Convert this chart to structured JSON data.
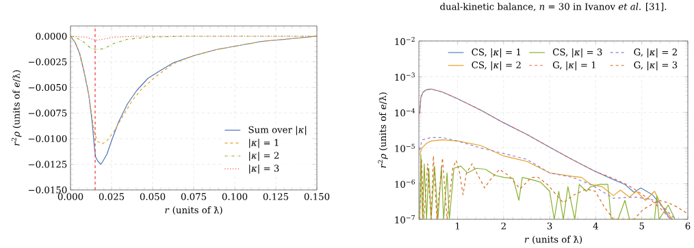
{
  "chart_data": [
    {
      "type": "line",
      "xlabel": "*r* (units of ƛ)",
      "ylabel": "*r*$^{2}$*ρ* (units of *e*/ƛ)",
      "xlim": [
        0,
        0.15
      ],
      "ylim": [
        -0.015,
        0.001
      ],
      "xticks": [
        {
          "value": 0,
          "label": "0.000"
        },
        {
          "value": 0.025,
          "label": "0.025"
        },
        {
          "value": 0.05,
          "label": "0.050"
        },
        {
          "value": 0.075,
          "label": "0.075"
        },
        {
          "value": 0.1,
          "label": "0.100"
        },
        {
          "value": 0.125,
          "label": "0.125"
        },
        {
          "value": 0.15,
          "label": "0.150"
        }
      ],
      "yticks": [
        {
          "value": 0,
          "label": "0.0000"
        },
        {
          "value": -0.0025,
          "label": "−0.0025"
        },
        {
          "value": -0.005,
          "label": "−0.0050"
        },
        {
          "value": -0.0075,
          "label": "−0.0075"
        },
        {
          "value": -0.01,
          "label": "−0.0100"
        },
        {
          "value": -0.0125,
          "label": "−0.0125"
        },
        {
          "value": -0.015,
          "label": "−0.0150"
        }
      ],
      "grid": true,
      "legend": "bottom right",
      "ref_lines": [
        {
          "axis": "x",
          "value": 0.015,
          "color": "#ee3030",
          "line_style": "dashed"
        }
      ],
      "series": [
        {
          "name": "Sum over |*κ*|",
          "color": "#4a74b4",
          "line_style": "solid",
          "x": [
            0,
            0.0028,
            0.0056,
            0.0083,
            0.0111,
            0.0132,
            0.0146,
            0.0153,
            0.0167,
            0.0185,
            0.0201,
            0.0222,
            0.025,
            0.0292,
            0.0347,
            0.0403,
            0.0472,
            0.0542,
            0.0625,
            0.075,
            0.0889,
            0.1028,
            0.1167,
            0.1306,
            0.15
          ],
          "values": [
            0,
            -0.0006,
            -0.0017,
            -0.0035,
            -0.0057,
            -0.0084,
            -0.0109,
            -0.0118,
            -0.0122,
            -0.0125,
            -0.0121,
            -0.0115,
            -0.0102,
            -0.0084,
            -0.0066,
            -0.0053,
            -0.0041,
            -0.0034,
            -0.0026,
            -0.0019,
            -0.0013,
            -0.0009,
            -0.0005,
            -0.0003,
            0
          ]
        },
        {
          "name": "|*κ*| = 1",
          "color": "#e8a020",
          "line_style": "dashed",
          "x": [
            0,
            0.0028,
            0.0056,
            0.0083,
            0.0111,
            0.0132,
            0.0146,
            0.0167,
            0.0194,
            0.0222,
            0.0264,
            0.0319,
            0.0375,
            0.0431,
            0.0514,
            0.0625,
            0.075,
            0.0889,
            0.1028,
            0.1167,
            0.1306,
            0.15
          ],
          "values": [
            0,
            -0.0006,
            -0.0017,
            -0.0035,
            -0.0057,
            -0.008,
            -0.0095,
            -0.0103,
            -0.0105,
            -0.0102,
            -0.0093,
            -0.0078,
            -0.0063,
            -0.0052,
            -0.004,
            -0.0027,
            -0.0019,
            -0.0013,
            -0.0009,
            -0.0005,
            -0.0003,
            0
          ]
        },
        {
          "name": "|*κ*| = 2",
          "color": "#86b02c",
          "line_style": "dashdot",
          "x": [
            0,
            0.0042,
            0.0083,
            0.0125,
            0.0167,
            0.0208,
            0.0264,
            0.0347,
            0.0472,
            0.0681,
            0.15
          ],
          "values": [
            0,
            -0.0002,
            -0.0006,
            -0.0012,
            -0.0013,
            -0.0012,
            -0.0007,
            -0.0003,
            -0.0001,
            0,
            0
          ]
        },
        {
          "name": "|*κ*| = 3",
          "color": "#f04a3a",
          "line_style": "dotted",
          "x": [
            0,
            0.0097,
            0.0153,
            0.0194,
            0.0264,
            0.0403,
            0.15
          ],
          "values": [
            0,
            -0.0001,
            -0.0004,
            -0.0003,
            -0.0001,
            0,
            0
          ]
        }
      ]
    },
    {
      "type": "line",
      "xlabel": "*r* (units of ƛ)",
      "ylabel": "*r*$^{2}$*ρ* (units of *e*/ƛ)",
      "xlim": [
        0.16,
        6
      ],
      "ylim": [
        1e-07,
        0.01
      ],
      "log": true,
      "xticks": [
        1,
        2,
        3,
        4,
        5,
        6
      ],
      "yticks": [
        {
          "value": 1e-07,
          "label": "10$^{−7}$"
        },
        {
          "value": 1e-06,
          "label": "10$^{−6}$"
        },
        {
          "value": 1e-05,
          "label": "10$^{−5}$"
        },
        {
          "value": 0.0001,
          "label": "10$^{−4}$"
        },
        {
          "value": 0.001,
          "label": "10$^{−3}$"
        },
        {
          "value": 0.01,
          "label": "10$^{−2}$"
        }
      ],
      "grid": true,
      "legend": "top right",
      "annotations": [
        "dual-kinetic balance, *n* = 30 in Ivanov *et al.* [31]."
      ],
      "series": [
        {
          "name": "CS, |*κ*| = 1",
          "color": "#5580c0",
          "line_style": "solid",
          "x": [
            0.178,
            0.203,
            0.252,
            0.327,
            0.426,
            0.673,
            1,
            1.505,
            2,
            2.505,
            3,
            3.495,
            3.99,
            4.386,
            4.634,
            4.832,
            4.98,
            5.228,
            5.426,
            5.574,
            5.648
          ],
          "values": [
            9.2e-05,
            0.00026,
            0.00037,
            0.00043,
            0.00045,
            0.00037,
            0.00024,
            0.000115,
            5.1e-05,
            2.4e-05,
            1.05e-05,
            4.7e-06,
            2.2e-06,
            1.3e-06,
            9.5e-07,
            5.7e-07,
            7.6e-07,
            4.9e-07,
            2.5e-07,
            1.2e-07,
            1e-07
          ]
        },
        {
          "name": "CS, |*κ*| = 2",
          "color": "#e8a020",
          "line_style": "solid",
          "x": [
            0.178,
            0.228,
            0.327,
            0.426,
            0.673,
            1,
            1.505,
            2,
            2.505,
            3,
            3.495,
            3.693,
            3.891,
            4.139,
            4.386,
            4.535,
            4.733,
            4.881,
            5.079,
            5.277,
            5.426,
            5.574,
            5.673
          ],
          "values": [
            6.5e-06,
            1e-05,
            1.35e-05,
            1.57e-05,
            1.69e-05,
            1.57e-05,
            1.17e-05,
            6e-06,
            4.2e-06,
            2e-06,
            1.6e-06,
            1.5e-06,
            9.5e-07,
            8.2e-07,
            4.6e-07,
            6.6e-07,
            4.2e-07,
            6.1e-07,
            3.4e-07,
            6.1e-07,
            2.5e-07,
            1.4e-07,
            1e-07
          ]
        },
        {
          "name": "CS, |*κ*| = 3",
          "color": "#86b02c",
          "line_style": "solid",
          "x": [
            0.178,
            0.203,
            0.24,
            0.277,
            0.327,
            0.376,
            0.426,
            0.5,
            0.574,
            0.649,
            0.698,
            0.772,
            0.822,
            0.921,
            1.069,
            1.218,
            1.416,
            1.614,
            1.812,
            2.01,
            2.208,
            2.332,
            2.406,
            2.604,
            2.802,
            2.901,
            3.0,
            3.099,
            3.198,
            3.297,
            3.396,
            3.545,
            3.644,
            3.792,
            3.891,
            4.089,
            4.262,
            4.337,
            4.485,
            4.634,
            4.733,
            5.277,
            5.327,
            5.376,
            5.574,
            5.723
          ],
          "values": [
            1e-07,
            6.5e-06,
            1e-07,
            3.6e-06,
            1e-07,
            2.7e-06,
            1e-07,
            3.1e-06,
            1e-07,
            2.9e-06,
            1e-07,
            2e-06,
            1e-07,
            2.7e-06,
            3.1e-06,
            2e-06,
            2.7e-06,
            2.5e-06,
            1.7e-06,
            1.5e-06,
            1.4e-06,
            3.4e-07,
            1.5e-06,
            1.3e-06,
            1.1e-06,
            8.2e-07,
            6.1e-07,
            1e-07,
            6.1e-07,
            1e-07,
            8.2e-07,
            1e-07,
            9.5e-07,
            6.1e-07,
            8.2e-07,
            9.5e-07,
            9.5e-07,
            1e-07,
            1e-07,
            3.4e-07,
            1e-07,
            1e-07,
            4.6e-07,
            1e-07,
            2.5e-07,
            1e-07
          ]
        },
        {
          "name": "G, |*κ*| = 1",
          "color": "#f06040",
          "line_style": "dashed",
          "x": [
            0.178,
            0.203,
            0.252,
            0.327,
            0.426,
            0.673,
            1,
            1.505,
            2,
            2.505,
            3,
            3.495,
            3.99,
            4.386,
            4.634,
            4.832,
            5.228,
            5.426,
            5.624
          ],
          "values": [
            9.2e-05,
            0.00026,
            0.00037,
            0.00043,
            0.00045,
            0.00037,
            0.00024,
            0.000115,
            5.1e-05,
            2.4e-05,
            1.05e-05,
            4.7e-06,
            2.2e-06,
            1.4e-06,
            1e-06,
            7.1e-07,
            3.2e-07,
            1.9e-07,
            1e-07
          ]
        },
        {
          "name": "G, |*κ*| = 2",
          "color": "#8c80d0",
          "line_style": "dashed",
          "x": [
            0.178,
            0.228,
            0.327,
            0.426,
            0.673,
            1,
            1.505,
            2,
            2.505,
            3,
            3.495,
            3.891,
            4.386,
            4.881,
            5.277,
            5.525,
            5.723
          ],
          "values": [
            8.7e-06,
            1.69e-05,
            1.82e-05,
            1.96e-05,
            1.96e-05,
            1.57e-05,
            1e-05,
            7e-06,
            4.8e-06,
            2e-06,
            1.5e-06,
            9.5e-07,
            3.9e-07,
            4.2e-07,
            3.4e-07,
            1.9e-07,
            1e-07
          ]
        },
        {
          "name": "G, |*κ*| = 3",
          "color": "#d2691e",
          "line_style": "dashed",
          "x": [
            0.178,
            0.218,
            0.267,
            0.351,
            0.426,
            0.475,
            0.55,
            0.673,
            0.772,
            0.896,
            0.97,
            1.045,
            1.119,
            1.193,
            1.317,
            1.416,
            1.589,
            1.713,
            1.911,
            2.109,
            2.356,
            2.604,
            2.752,
            2.95,
            3.297,
            3.495,
            3.792,
            3.99,
            4.188,
            4.386,
            4.832,
            5.03,
            5.376,
            5.574,
            5.772,
            5.97
          ],
          "values": [
            1e-07,
            4.8e-06,
            1e-07,
            3.6e-06,
            1e-07,
            6e-06,
            1e-07,
            5.2e-06,
            1e-07,
            2.7e-06,
            4.5e-06,
            2e-06,
            4.9e-07,
            2e-06,
            3.6e-06,
            2e-06,
            7.6e-07,
            1.3e-06,
            2.5e-06,
            1.7e-06,
            7.1e-07,
            1.5e-06,
            1.5e-06,
            9.5e-07,
            2.9e-07,
            4.6e-07,
            7.1e-07,
            6.1e-07,
            2.2e-07,
            1e-07,
            1e-07,
            1.9e-07,
            3.4e-07,
            2.9e-07,
            2.2e-07,
            1.5e-07
          ]
        }
      ]
    }
  ]
}
